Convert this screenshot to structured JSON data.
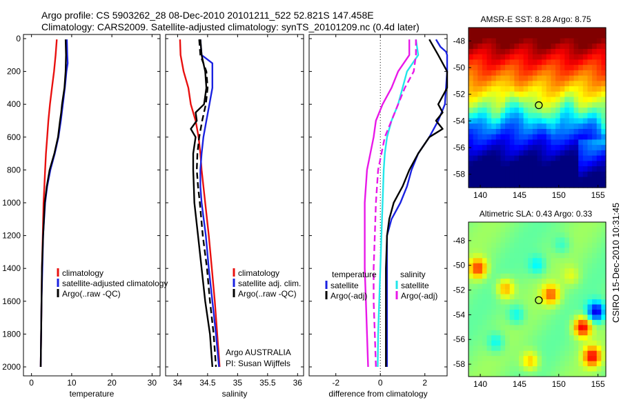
{
  "header": {
    "line1": "Argo profile: CS 5903262_28 08-Dec-2010 20101211_522 52.821S 147.458E",
    "line2": "Climatology: CARS2009. Satellite-adjusted climatology: synTS_20101209.nc (0.4d later)"
  },
  "credit": "CSIRO 15-Dec-2010 10:31:45",
  "chart_data": [
    {
      "type": "line",
      "xlabel": "temperature",
      "ylabel": "",
      "xlim": [
        -2,
        32
      ],
      "ylim": [
        2040,
        0
      ],
      "x_ticks": [
        0,
        10,
        20,
        30
      ],
      "y_ticks": [
        0,
        200,
        400,
        600,
        800,
        1000,
        1200,
        1400,
        1600,
        1800,
        2000
      ],
      "legend_position": "bottom-right",
      "legend": [
        "climatology",
        "satellite-adjusted climatology",
        "Argo(..raw -QC)"
      ],
      "series": [
        {
          "name": "climatology",
          "color": "#e8100f",
          "style": "solid",
          "points": [
            [
              6.3,
              5
            ],
            [
              6.0,
              100
            ],
            [
              5.6,
              200
            ],
            [
              5.1,
              300
            ],
            [
              4.6,
              400
            ],
            [
              4.2,
              500
            ],
            [
              3.9,
              600
            ],
            [
              3.6,
              700
            ],
            [
              3.4,
              800
            ],
            [
              3.2,
              900
            ],
            [
              3.0,
              1000
            ],
            [
              2.8,
              1200
            ],
            [
              2.6,
              1400
            ],
            [
              2.5,
              1600
            ],
            [
              2.4,
              1800
            ],
            [
              2.3,
              2000
            ]
          ]
        },
        {
          "name": "satellite-adjusted climatology",
          "color": "#1a22e0",
          "style": "solid",
          "points": [
            [
              8.8,
              5
            ],
            [
              8.9,
              100
            ],
            [
              9.0,
              150
            ],
            [
              8.7,
              200
            ],
            [
              8.3,
              300
            ],
            [
              7.8,
              400
            ],
            [
              7.3,
              500
            ],
            [
              6.7,
              600
            ],
            [
              5.8,
              700
            ],
            [
              4.7,
              800
            ],
            [
              3.9,
              900
            ],
            [
              3.4,
              1000
            ],
            [
              2.9,
              1200
            ],
            [
              2.7,
              1400
            ],
            [
              2.5,
              1600
            ],
            [
              2.4,
              1800
            ],
            [
              2.3,
              2000
            ]
          ]
        },
        {
          "name": "Argo(..raw -QC)",
          "color": "#000000",
          "style": "solid",
          "points": [
            [
              8.5,
              5
            ],
            [
              8.6,
              100
            ],
            [
              8.5,
              200
            ],
            [
              8.2,
              300
            ],
            [
              7.6,
              400
            ],
            [
              7.4,
              450
            ],
            [
              7.1,
              500
            ],
            [
              6.6,
              600
            ],
            [
              5.7,
              700
            ],
            [
              4.5,
              800
            ],
            [
              3.8,
              900
            ],
            [
              3.3,
              1000
            ],
            [
              2.9,
              1200
            ],
            [
              2.6,
              1400
            ],
            [
              2.5,
              1600
            ],
            [
              2.4,
              1800
            ],
            [
              2.3,
              2000
            ]
          ]
        }
      ]
    },
    {
      "type": "line",
      "xlabel": "salinity",
      "ylabel": "",
      "xlim": [
        33.8,
        36.1
      ],
      "ylim": [
        2040,
        0
      ],
      "x_ticks": [
        34,
        34.5,
        35,
        35.5,
        36
      ],
      "legend_position": "bottom-right",
      "legend": [
        "climatology",
        "satellite adj. clim.",
        "Argo(..raw -QC)"
      ],
      "annotation": [
        "Argo AUSTRALIA",
        "PI: Susan Wijffels"
      ],
      "series": [
        {
          "name": "climatology",
          "color": "#e8100f",
          "style": "solid",
          "points": [
            [
              34.04,
              5
            ],
            [
              34.05,
              100
            ],
            [
              34.1,
              200
            ],
            [
              34.18,
              300
            ],
            [
              34.22,
              400
            ],
            [
              34.3,
              500
            ],
            [
              34.35,
              600
            ],
            [
              34.38,
              700
            ],
            [
              34.4,
              800
            ],
            [
              34.43,
              900
            ],
            [
              34.46,
              1000
            ],
            [
              34.52,
              1200
            ],
            [
              34.57,
              1400
            ],
            [
              34.62,
              1600
            ],
            [
              34.66,
              1800
            ],
            [
              34.7,
              2000
            ]
          ]
        },
        {
          "name": "satellite adj. clim.",
          "color": "#1a22e0",
          "style": "solid",
          "points": [
            [
              34.38,
              5
            ],
            [
              34.4,
              100
            ],
            [
              34.58,
              150
            ],
            [
              34.58,
              300
            ],
            [
              34.53,
              400
            ],
            [
              34.48,
              500
            ],
            [
              34.43,
              600
            ],
            [
              34.4,
              700
            ],
            [
              34.38,
              800
            ],
            [
              34.38,
              900
            ],
            [
              34.4,
              1000
            ],
            [
              34.47,
              1200
            ],
            [
              34.52,
              1400
            ],
            [
              34.58,
              1600
            ],
            [
              34.64,
              1800
            ],
            [
              34.69,
              2000
            ]
          ]
        },
        {
          "name": "Argo(..raw -QC)",
          "color": "#000000",
          "style": "solid",
          "points": [
            [
              34.38,
              5
            ],
            [
              34.4,
              100
            ],
            [
              34.46,
              200
            ],
            [
              34.48,
              300
            ],
            [
              34.44,
              400
            ],
            [
              34.3,
              450
            ],
            [
              34.32,
              500
            ],
            [
              34.22,
              550
            ],
            [
              34.3,
              600
            ],
            [
              34.26,
              700
            ],
            [
              34.26,
              800
            ],
            [
              34.27,
              900
            ],
            [
              34.28,
              1000
            ],
            [
              34.34,
              1200
            ],
            [
              34.4,
              1400
            ],
            [
              34.46,
              1600
            ],
            [
              34.54,
              1800
            ],
            [
              34.58,
              2000
            ]
          ]
        },
        {
          "name": "",
          "color": "#000000",
          "style": "dashed",
          "points": [
            [
              34.36,
              5
            ],
            [
              34.38,
              100
            ],
            [
              34.48,
              200
            ],
            [
              34.5,
              300
            ],
            [
              34.47,
              400
            ],
            [
              34.41,
              500
            ],
            [
              34.36,
              600
            ],
            [
              34.33,
              700
            ],
            [
              34.32,
              800
            ],
            [
              34.34,
              900
            ],
            [
              34.37,
              1000
            ],
            [
              34.42,
              1200
            ],
            [
              34.49,
              1400
            ],
            [
              34.54,
              1600
            ],
            [
              34.6,
              1800
            ],
            [
              34.64,
              2000
            ]
          ]
        }
      ]
    },
    {
      "type": "line",
      "xlabel": "difference from climatology",
      "ylabel": "",
      "xlim": [
        -3.2,
        3.0
      ],
      "ylim": [
        2040,
        0
      ],
      "x_ticks": [
        -2,
        0,
        2
      ],
      "zero_line": "dotted",
      "legend_position": "bottom",
      "legend_groups": [
        {
          "heading": "temperature",
          "items": [
            "satellite",
            "Argo(-adj)"
          ]
        },
        {
          "heading": "salinity",
          "items": [
            "satellite",
            "Argo(-adj)"
          ]
        }
      ],
      "series": [
        {
          "name": "temperature satellite",
          "color": "#1a22e0",
          "style": "solid",
          "points": [
            [
              2.5,
              5
            ],
            [
              2.7,
              50
            ],
            [
              2.95,
              80
            ],
            [
              3.0,
              100
            ],
            [
              3.0,
              200
            ],
            [
              2.9,
              400
            ],
            [
              2.6,
              500
            ],
            [
              2.2,
              600
            ],
            [
              1.7,
              700
            ],
            [
              1.4,
              800
            ],
            [
              1.2,
              900
            ],
            [
              0.9,
              1000
            ],
            [
              0.5,
              1100
            ],
            [
              0.3,
              1200
            ],
            [
              0.3,
              1400
            ],
            [
              0.3,
              1600
            ],
            [
              0.3,
              1800
            ],
            [
              0.3,
              2000
            ]
          ]
        },
        {
          "name": "temperature Argo(-adj)",
          "color": "#000000",
          "style": "solid",
          "points": [
            [
              2.2,
              5
            ],
            [
              2.6,
              100
            ],
            [
              3.0,
              200
            ],
            [
              3.0,
              300
            ],
            [
              2.6,
              400
            ],
            [
              2.8,
              450
            ],
            [
              2.5,
              500
            ],
            [
              2.8,
              550
            ],
            [
              2.2,
              600
            ],
            [
              1.7,
              700
            ],
            [
              1.3,
              800
            ],
            [
              1.0,
              900
            ],
            [
              0.8,
              950
            ],
            [
              0.6,
              1000
            ],
            [
              0.4,
              1100
            ],
            [
              0.3,
              1200
            ],
            [
              0.25,
              1400
            ],
            [
              0.25,
              1600
            ],
            [
              0.25,
              1800
            ],
            [
              0.25,
              2000
            ]
          ]
        },
        {
          "name": "salinity satellite",
          "color": "#22e6ea",
          "style": "solid",
          "points": [
            [
              1.6,
              5
            ],
            [
              1.7,
              100
            ],
            [
              1.2,
              200
            ],
            [
              0.8,
              400
            ],
            [
              0.5,
              500
            ],
            [
              0.3,
              600
            ],
            [
              0.2,
              700
            ],
            [
              0.15,
              800
            ],
            [
              0.1,
              1000
            ],
            [
              0.05,
              1200
            ],
            [
              0.0,
              1400
            ],
            [
              -0.05,
              1600
            ],
            [
              -0.1,
              1800
            ],
            [
              -0.12,
              2000
            ]
          ]
        },
        {
          "name": "salinity Argo(-adj)",
          "color": "#e818e8",
          "style": "solid",
          "points": [
            [
              1.3,
              5
            ],
            [
              1.3,
              100
            ],
            [
              0.8,
              200
            ],
            [
              0.5,
              300
            ],
            [
              0.1,
              400
            ],
            [
              -0.2,
              500
            ],
            [
              -0.3,
              600
            ],
            [
              -0.6,
              800
            ],
            [
              -0.7,
              1000
            ],
            [
              -0.7,
              1200
            ],
            [
              -0.7,
              1400
            ],
            [
              -0.65,
              1600
            ],
            [
              -0.6,
              1800
            ],
            [
              -0.55,
              2000
            ]
          ]
        },
        {
          "name": "",
          "color": "#e818e8",
          "style": "dashed",
          "points": [
            [
              1.6,
              5
            ],
            [
              1.6,
              100
            ],
            [
              1.5,
              200
            ],
            [
              1.1,
              300
            ],
            [
              0.8,
              400
            ],
            [
              0.5,
              500
            ],
            [
              0.2,
              600
            ],
            [
              -0.1,
              800
            ],
            [
              -0.2,
              1000
            ],
            [
              -0.25,
              1200
            ],
            [
              -0.3,
              1400
            ],
            [
              -0.3,
              1600
            ],
            [
              -0.25,
              1800
            ],
            [
              -0.2,
              2000
            ]
          ]
        }
      ]
    },
    {
      "type": "heatmap",
      "title": "AMSR-E SST: 8.28 Argo: 8.75",
      "xlim": [
        138.5,
        156
      ],
      "ylim": [
        -59,
        -47
      ],
      "x_ticks": [
        140,
        145,
        150,
        155
      ],
      "y_ticks": [
        -48,
        -50,
        -52,
        -54,
        -56,
        -58
      ],
      "marker": [
        147.458,
        -52.821
      ],
      "colormap": [
        "#00007f",
        "#0000ff",
        "#0080ff",
        "#00ffff",
        "#80ff80",
        "#ffff00",
        "#ff8000",
        "#ff0000",
        "#800000"
      ]
    },
    {
      "type": "heatmap",
      "title": "Altimetric SLA: 0.43 Argo: 0.33",
      "xlim": [
        138.5,
        156
      ],
      "ylim": [
        -59,
        -46.5
      ],
      "x_ticks": [
        140,
        145,
        150,
        155
      ],
      "y_ticks": [
        -48,
        -50,
        -52,
        -54,
        -56,
        -58
      ],
      "marker": [
        147.458,
        -52.821
      ],
      "colormap": [
        "#00007f",
        "#0000ff",
        "#0080ff",
        "#00ffff",
        "#80ff80",
        "#ffff00",
        "#ff8000",
        "#ff0000",
        "#800000"
      ]
    }
  ]
}
